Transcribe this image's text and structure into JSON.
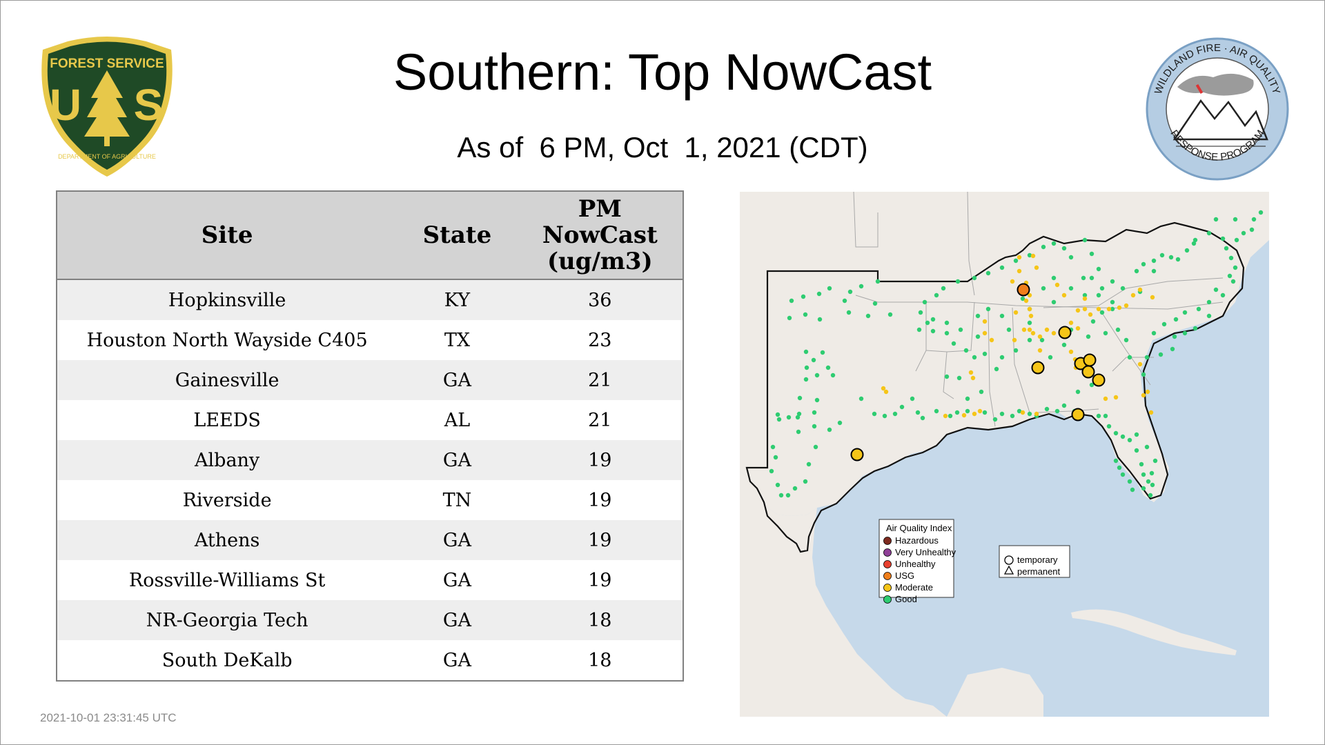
{
  "page": {
    "title": "Southern: Top NowCast",
    "subtitle": "As of  6 PM, Oct  1, 2021 (CDT)",
    "timestamp": "2021-10-01 23:31:45 UTC"
  },
  "logos": {
    "forest_service": {
      "top_text": "FOREST SERVICE",
      "letters": "U S",
      "bottom_text": "DEPARTMENT OF AGRICULTURE",
      "colors": {
        "shield": "#1f4a26",
        "gold": "#e7c84a"
      }
    },
    "wildland": {
      "top_text": "WILDLAND FIRE · AIR QUALITY",
      "bottom_text": "RESPONSE PROGRAM",
      "colors": {
        "ring": "#b5cde3",
        "border": "#7aa0c4"
      }
    }
  },
  "table": {
    "headers": {
      "site": "Site",
      "state": "State",
      "value_line1": "PM",
      "value_line2": "NowCast",
      "value_line3": "(ug/m3)"
    },
    "rows": [
      {
        "site": "Hopkinsville",
        "state": "KY",
        "value": "36"
      },
      {
        "site": "Houston North Wayside C405",
        "state": "TX",
        "value": "23"
      },
      {
        "site": "Gainesville",
        "state": "GA",
        "value": "21"
      },
      {
        "site": "LEEDS",
        "state": "AL",
        "value": "21"
      },
      {
        "site": "Albany",
        "state": "GA",
        "value": "19"
      },
      {
        "site": "Riverside",
        "state": "TN",
        "value": "19"
      },
      {
        "site": "Athens",
        "state": "GA",
        "value": "19"
      },
      {
        "site": "Rossville-Williams St",
        "state": "GA",
        "value": "19"
      },
      {
        "site": "NR-Georgia Tech",
        "state": "GA",
        "value": "18"
      },
      {
        "site": "South DeKalb",
        "state": "GA",
        "value": "18"
      }
    ]
  },
  "map": {
    "legend": {
      "title": "Air Quality Index",
      "items": [
        {
          "label": "Hazardous",
          "color": "#7e2a1f"
        },
        {
          "label": "Very Unhealthy",
          "color": "#8f3f97"
        },
        {
          "label": "Unhealthy",
          "color": "#e8402f"
        },
        {
          "label": "USG",
          "color": "#f07e1a"
        },
        {
          "label": "Moderate",
          "color": "#f5c518"
        },
        {
          "label": "Good",
          "color": "#2ecc71"
        }
      ]
    },
    "shape_legend": {
      "items": [
        {
          "label": "temporary",
          "shape": "circle"
        },
        {
          "label": "permanent",
          "shape": "triangle"
        }
      ]
    },
    "colors": {
      "water": "#c6d9ea",
      "land": "#efebe6",
      "region_border": "#111111",
      "state_border": "#a8a8a8"
    }
  }
}
